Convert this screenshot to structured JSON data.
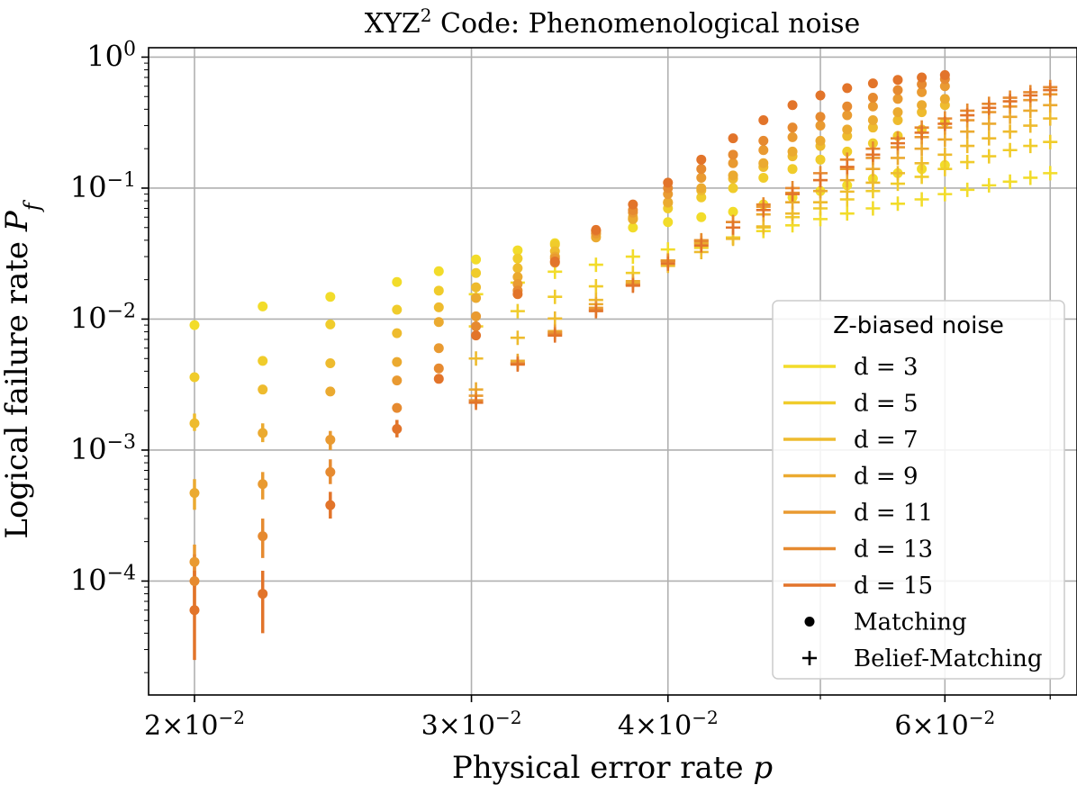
{
  "chart_data": {
    "type": "scatter",
    "title_base": "XYZ",
    "title_sup": "2",
    "title_rest": " Code: Phenomenological noise",
    "xlabel": "Physical error rate ",
    "xlabel_var": "p",
    "ylabel": "Logical failure rate ",
    "ylabel_var": "P",
    "ylabel_sub": "f",
    "xscale": "log",
    "yscale": "log",
    "xlim": [
      0.0187,
      0.0728
    ],
    "ylim": [
      1.35e-05,
      1.18
    ],
    "grid": true,
    "x_ticks": [
      {
        "value": 0.02,
        "mant": "2",
        "exp": "−2"
      },
      {
        "value": 0.03,
        "mant": "3",
        "exp": "−2"
      },
      {
        "value": 0.04,
        "mant": "4",
        "exp": "−2"
      },
      {
        "value": 0.06,
        "mant": "6",
        "exp": "−2"
      }
    ],
    "x_minor_ticks": [
      0.05,
      0.07
    ],
    "y_ticks": [
      {
        "value": 1,
        "exp": "0"
      },
      {
        "value": 0.1,
        "exp": "−1"
      },
      {
        "value": 0.01,
        "exp": "−2"
      },
      {
        "value": 0.001,
        "exp": "−3"
      },
      {
        "value": 0.0001,
        "exp": "−4"
      }
    ],
    "legend": {
      "title": "Z-biased noise",
      "position": "lower right",
      "marker_entries": [
        {
          "label": "Matching",
          "marker": "dot"
        },
        {
          "label": "Belief-Matching",
          "marker": "plus"
        }
      ]
    },
    "series": [
      {
        "name": "d = 3",
        "color": "#f2dc2a",
        "matching": {
          "x": [
            0.02,
            0.0221,
            0.0244,
            0.0269,
            0.0286,
            0.0302,
            0.0321,
            0.0339,
            0.036,
            0.038,
            0.04,
            0.042,
            0.044,
            0.046,
            0.048,
            0.05,
            0.052,
            0.054,
            0.056,
            0.058,
            0.06
          ],
          "y": [
            0.009,
            0.0125,
            0.0148,
            0.0192,
            0.0232,
            0.0285,
            0.0335,
            0.038,
            0.043,
            0.05,
            0.055,
            0.06,
            0.066,
            0.075,
            0.085,
            0.095,
            0.105,
            0.118,
            0.13,
            0.14,
            0.15
          ]
        },
        "belief": {
          "x": [
            0.0302,
            0.0321,
            0.0339,
            0.036,
            0.038,
            0.04,
            0.042,
            0.044,
            0.046,
            0.048,
            0.05,
            0.052,
            0.054,
            0.056,
            0.058,
            0.06,
            0.062,
            0.064,
            0.066,
            0.068,
            0.07
          ],
          "y": [
            0.0155,
            0.019,
            0.023,
            0.026,
            0.03,
            0.034,
            0.038,
            0.042,
            0.047,
            0.052,
            0.058,
            0.064,
            0.07,
            0.076,
            0.082,
            0.09,
            0.097,
            0.105,
            0.112,
            0.12,
            0.13
          ]
        }
      },
      {
        "name": "d = 5",
        "color": "#f0cc2b",
        "matching": {
          "x": [
            0.02,
            0.0221,
            0.0244,
            0.0269,
            0.0286,
            0.0302,
            0.0321,
            0.0339,
            0.036,
            0.038,
            0.04,
            0.042,
            0.044,
            0.046,
            0.048,
            0.05,
            0.052,
            0.054,
            0.056,
            0.058,
            0.06
          ],
          "y": [
            0.0036,
            0.0048,
            0.0091,
            0.0118,
            0.0165,
            0.0225,
            0.029,
            0.037,
            0.047,
            0.058,
            0.07,
            0.085,
            0.1,
            0.12,
            0.14,
            0.165,
            0.19,
            0.22,
            0.25,
            0.28,
            0.32
          ]
        },
        "belief": {
          "x": [
            0.0302,
            0.0321,
            0.0339,
            0.036,
            0.038,
            0.04,
            0.042,
            0.044,
            0.046,
            0.048,
            0.05,
            0.052,
            0.054,
            0.056,
            0.058,
            0.06,
            0.062,
            0.064,
            0.066,
            0.068,
            0.07
          ],
          "y": [
            0.0088,
            0.0115,
            0.0148,
            0.0178,
            0.0225,
            0.028,
            0.035,
            0.042,
            0.05,
            0.06,
            0.07,
            0.082,
            0.095,
            0.108,
            0.122,
            0.14,
            0.158,
            0.175,
            0.195,
            0.21,
            0.225
          ]
        }
      },
      {
        "name": "d = 7",
        "color": "#eebb2e",
        "matching": {
          "x": [
            0.02,
            0.0221,
            0.0244,
            0.0269,
            0.0286,
            0.0302,
            0.0321,
            0.0339,
            0.036,
            0.038,
            0.04,
            0.042,
            0.044,
            0.046,
            0.048,
            0.05,
            0.052,
            0.054,
            0.056,
            0.058,
            0.06
          ],
          "y": [
            0.0016,
            0.0029,
            0.0046,
            0.0078,
            0.0123,
            0.0175,
            0.0245,
            0.033,
            0.045,
            0.06,
            0.077,
            0.096,
            0.118,
            0.145,
            0.175,
            0.21,
            0.25,
            0.29,
            0.33,
            0.38,
            0.43
          ]
        },
        "belief": {
          "x": [
            0.0302,
            0.0321,
            0.0339,
            0.036,
            0.038,
            0.04,
            0.042,
            0.044,
            0.046,
            0.048,
            0.05,
            0.052,
            0.054,
            0.056,
            0.058,
            0.06,
            0.062,
            0.064,
            0.066,
            0.068,
            0.07
          ],
          "y": [
            0.005,
            0.0072,
            0.0101,
            0.014,
            0.019,
            0.0255,
            0.0325,
            0.041,
            0.051,
            0.064,
            0.078,
            0.094,
            0.11,
            0.13,
            0.155,
            0.18,
            0.21,
            0.24,
            0.27,
            0.3,
            0.34
          ]
        }
      },
      {
        "name": "d = 9",
        "color": "#ebaa30",
        "matching": {
          "x": [
            0.02,
            0.0221,
            0.0244,
            0.0269,
            0.0286,
            0.0302,
            0.0321,
            0.0339,
            0.036,
            0.038,
            0.04,
            0.042,
            0.044,
            0.046,
            0.048,
            0.05,
            0.052,
            0.054,
            0.056,
            0.058,
            0.06
          ],
          "y": [
            0.00047,
            0.00135,
            0.0028,
            0.0047,
            0.0095,
            0.0145,
            0.021,
            0.03,
            0.042,
            0.058,
            0.078,
            0.1,
            0.125,
            0.155,
            0.19,
            0.23,
            0.28,
            0.33,
            0.38,
            0.43,
            0.48
          ]
        },
        "belief": {
          "x": [
            0.0302,
            0.0321,
            0.0339,
            0.036,
            0.038,
            0.04,
            0.042,
            0.044,
            0.046,
            0.048,
            0.05,
            0.052,
            0.054,
            0.056,
            0.058,
            0.06,
            0.062,
            0.064,
            0.066,
            0.068,
            0.07
          ],
          "y": [
            0.0029,
            0.0048,
            0.0081,
            0.013,
            0.0195,
            0.028,
            0.038,
            0.05,
            0.063,
            0.078,
            0.095,
            0.115,
            0.14,
            0.17,
            0.2,
            0.235,
            0.27,
            0.31,
            0.35,
            0.39,
            0.43
          ]
        }
      },
      {
        "name": "d = 11",
        "color": "#e99a31",
        "matching": {
          "x": [
            0.02,
            0.0221,
            0.0244,
            0.0269,
            0.0286,
            0.0302,
            0.0321,
            0.0339,
            0.036,
            0.038,
            0.04,
            0.042,
            0.044,
            0.046,
            0.048,
            0.05,
            0.052,
            0.054,
            0.056,
            0.058,
            0.06
          ],
          "y": [
            0.00014,
            0.00055,
            0.0012,
            0.0034,
            0.006,
            0.0105,
            0.0185,
            0.029,
            0.045,
            0.065,
            0.09,
            0.12,
            0.155,
            0.195,
            0.245,
            0.3,
            0.36,
            0.42,
            0.48,
            0.54,
            0.6
          ]
        },
        "belief": {
          "x": [
            0.0302,
            0.0321,
            0.0339,
            0.036,
            0.038,
            0.04,
            0.042,
            0.044,
            0.046,
            0.048,
            0.05,
            0.052,
            0.054,
            0.056,
            0.058,
            0.06,
            0.062,
            0.064,
            0.066,
            0.068,
            0.07
          ],
          "y": [
            0.0026,
            0.0046,
            0.0079,
            0.0122,
            0.0185,
            0.028,
            0.04,
            0.055,
            0.072,
            0.092,
            0.115,
            0.14,
            0.17,
            0.205,
            0.245,
            0.29,
            0.33,
            0.38,
            0.42,
            0.47,
            0.52
          ]
        }
      },
      {
        "name": "d = 13",
        "color": "#e68a30",
        "matching": {
          "x": [
            0.02,
            0.0221,
            0.0244,
            0.0269,
            0.0286,
            0.0302,
            0.0321,
            0.0339,
            0.036,
            0.038,
            0.04,
            0.042,
            0.044,
            0.046,
            0.048,
            0.05,
            0.052,
            0.054,
            0.056,
            0.058,
            0.06
          ],
          "y": [
            0.0001,
            0.00022,
            0.00068,
            0.0021,
            0.0042,
            0.0088,
            0.0165,
            0.027,
            0.047,
            0.068,
            0.1,
            0.14,
            0.18,
            0.23,
            0.29,
            0.35,
            0.42,
            0.49,
            0.56,
            0.62,
            0.68
          ]
        },
        "belief": {
          "x": [
            0.0302,
            0.0321,
            0.0339,
            0.036,
            0.038,
            0.04,
            0.042,
            0.044,
            0.046,
            0.048,
            0.05,
            0.052,
            0.054,
            0.056,
            0.058,
            0.06,
            0.062,
            0.064,
            0.066,
            0.068,
            0.07
          ],
          "y": [
            0.0024,
            0.0046,
            0.0077,
            0.0118,
            0.0182,
            0.0275,
            0.0395,
            0.055,
            0.075,
            0.1,
            0.13,
            0.165,
            0.2,
            0.24,
            0.29,
            0.34,
            0.39,
            0.44,
            0.49,
            0.54,
            0.59
          ]
        }
      },
      {
        "name": "d = 15",
        "color": "#e2742a",
        "matching": {
          "x": [
            0.02,
            0.0221,
            0.0244,
            0.0269,
            0.0286,
            0.0302,
            0.0321,
            0.0339,
            0.036,
            0.038,
            0.04,
            0.042,
            0.044,
            0.046,
            0.048,
            0.05,
            0.052,
            0.054,
            0.056,
            0.058,
            0.06
          ],
          "y": [
            6e-05,
            8e-05,
            0.00038,
            0.00145,
            0.0035,
            0.0075,
            0.0155,
            0.0275,
            0.048,
            0.075,
            0.11,
            0.165,
            0.24,
            0.33,
            0.43,
            0.51,
            0.58,
            0.63,
            0.67,
            0.7,
            0.73
          ]
        },
        "belief": {
          "x": [
            0.0302,
            0.0321,
            0.0339,
            0.036,
            0.038,
            0.04,
            0.042,
            0.044,
            0.046,
            0.048,
            0.05,
            0.052,
            0.054,
            0.056,
            0.058,
            0.06,
            0.062,
            0.064,
            0.066,
            0.068,
            0.07
          ],
          "y": [
            0.0023,
            0.0045,
            0.0075,
            0.0115,
            0.018,
            0.0265,
            0.0365,
            0.05,
            0.068,
            0.09,
            0.115,
            0.145,
            0.18,
            0.22,
            0.265,
            0.31,
            0.36,
            0.41,
            0.46,
            0.51,
            0.56
          ]
        }
      }
    ],
    "error_bars": [
      {
        "series": 3,
        "x": 0.02,
        "lo": 0.00035,
        "hi": 0.0006
      },
      {
        "series": 4,
        "x": 0.02,
        "lo": 9e-05,
        "hi": 0.00019
      },
      {
        "series": 5,
        "x": 0.02,
        "lo": 5.5e-05,
        "hi": 0.00016
      },
      {
        "series": 6,
        "x": 0.02,
        "lo": 2.5e-05,
        "hi": 0.00012
      },
      {
        "series": 3,
        "x": 0.0221,
        "lo": 0.00115,
        "hi": 0.0016
      },
      {
        "series": 4,
        "x": 0.0221,
        "lo": 0.00042,
        "hi": 0.00068
      },
      {
        "series": 5,
        "x": 0.0221,
        "lo": 0.00015,
        "hi": 0.0003
      },
      {
        "series": 6,
        "x": 0.0221,
        "lo": 4e-05,
        "hi": 0.00012
      },
      {
        "series": 4,
        "x": 0.0244,
        "lo": 0.001,
        "hi": 0.0014
      },
      {
        "series": 5,
        "x": 0.0244,
        "lo": 0.00055,
        "hi": 0.00085
      },
      {
        "series": 6,
        "x": 0.0244,
        "lo": 0.0003,
        "hi": 0.00048
      },
      {
        "series": 6,
        "x": 0.0269,
        "lo": 0.00125,
        "hi": 0.0017
      },
      {
        "series": 2,
        "x": 0.02,
        "lo": 0.0014,
        "hi": 0.0019
      }
    ]
  }
}
